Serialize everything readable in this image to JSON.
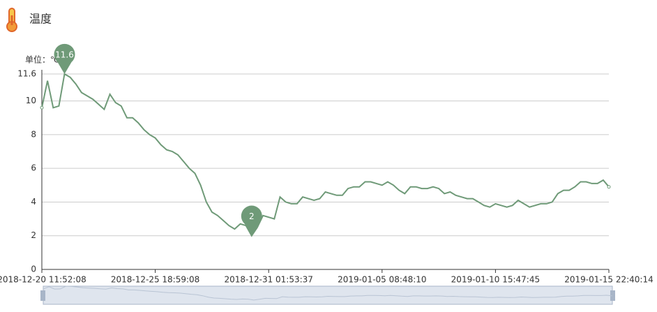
{
  "chart_data": {
    "type": "line",
    "title": "温度",
    "unit_label": "单位：℃",
    "categories": [
      "2018-12-20 11:52:08",
      null,
      null,
      null,
      null,
      null,
      null,
      null,
      null,
      null,
      null,
      null,
      null,
      null,
      null,
      null,
      null,
      null,
      null,
      null,
      "2018-12-25 18:59:08",
      null,
      null,
      null,
      null,
      null,
      null,
      null,
      null,
      null,
      null,
      null,
      null,
      null,
      null,
      null,
      null,
      null,
      null,
      null,
      "2018-12-31 01:53:37",
      null,
      null,
      null,
      null,
      null,
      null,
      null,
      null,
      null,
      null,
      null,
      null,
      null,
      null,
      null,
      null,
      null,
      null,
      null,
      "2019-01-05 08:48:10",
      null,
      null,
      null,
      null,
      null,
      null,
      null,
      null,
      null,
      null,
      null,
      null,
      null,
      null,
      null,
      null,
      null,
      null,
      null,
      "2019-01-10 15:47:45",
      null,
      null,
      null,
      null,
      null,
      null,
      null,
      null,
      null,
      null,
      null,
      null,
      null,
      null,
      null,
      null,
      null,
      null,
      null,
      "2019-01-15 22:40:14"
    ],
    "series": [
      {
        "name": "温度",
        "color": "#6f9a78",
        "values": [
          9.6,
          11.2,
          9.6,
          9.7,
          11.6,
          11.4,
          11.0,
          10.5,
          10.3,
          10.1,
          9.8,
          9.5,
          10.4,
          9.9,
          9.7,
          9.0,
          9.0,
          8.7,
          8.3,
          8.0,
          7.8,
          7.4,
          7.1,
          7.0,
          6.8,
          6.4,
          6.0,
          5.7,
          5.0,
          4.0,
          3.4,
          3.2,
          2.9,
          2.6,
          2.4,
          2.7,
          2.6,
          2.0,
          2.5,
          3.2,
          3.1,
          3.0,
          4.3,
          4.0,
          3.9,
          3.9,
          4.3,
          4.2,
          4.1,
          4.2,
          4.6,
          4.5,
          4.4,
          4.4,
          4.8,
          4.9,
          4.9,
          5.2,
          5.2,
          5.1,
          5.0,
          5.2,
          5.0,
          4.7,
          4.5,
          4.9,
          4.9,
          4.8,
          4.8,
          4.9,
          4.8,
          4.5,
          4.6,
          4.4,
          4.3,
          4.2,
          4.2,
          4.0,
          3.8,
          3.7,
          3.9,
          3.8,
          3.7,
          3.8,
          4.1,
          3.9,
          3.7,
          3.8,
          3.9,
          3.9,
          4.0,
          4.5,
          4.7,
          4.7,
          4.9,
          5.2,
          5.2,
          5.1,
          5.1,
          5.3,
          4.9
        ]
      }
    ],
    "ylim": [
      0,
      11.6
    ],
    "yticks": [
      0,
      2,
      4,
      6,
      8,
      10,
      11.6
    ],
    "grid": true
  }
}
